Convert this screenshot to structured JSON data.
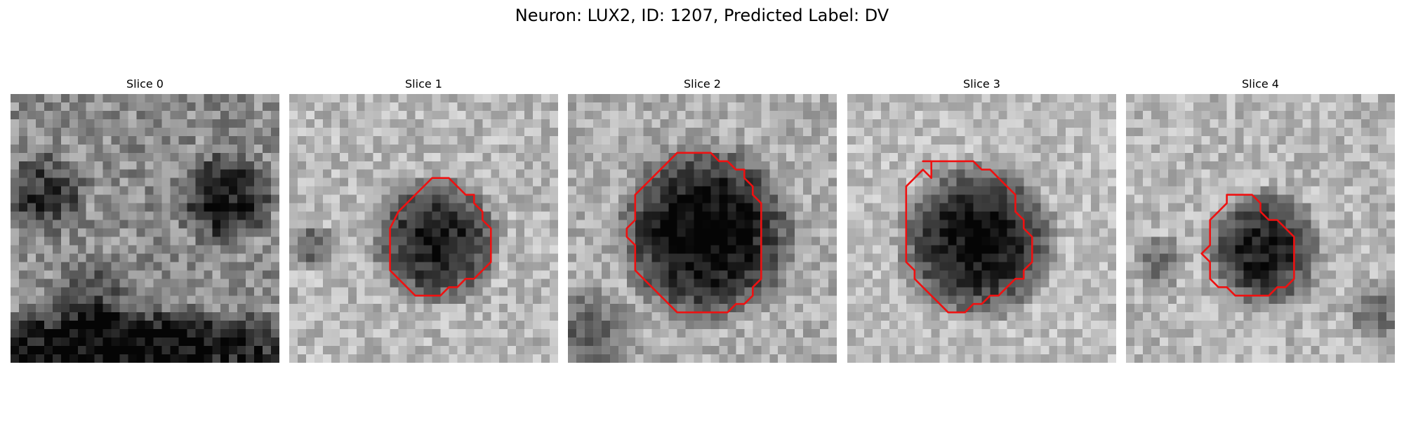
{
  "figure": {
    "title": "Neuron: LUX2, ID: 1207, Predicted Label: DV"
  },
  "colors": {
    "contour": "#ee1111"
  },
  "panels": [
    {
      "title": "Slice 0"
    },
    {
      "title": "Slice 1"
    },
    {
      "title": "Slice 2"
    },
    {
      "title": "Slice 3"
    },
    {
      "title": "Slice 4"
    }
  ]
}
